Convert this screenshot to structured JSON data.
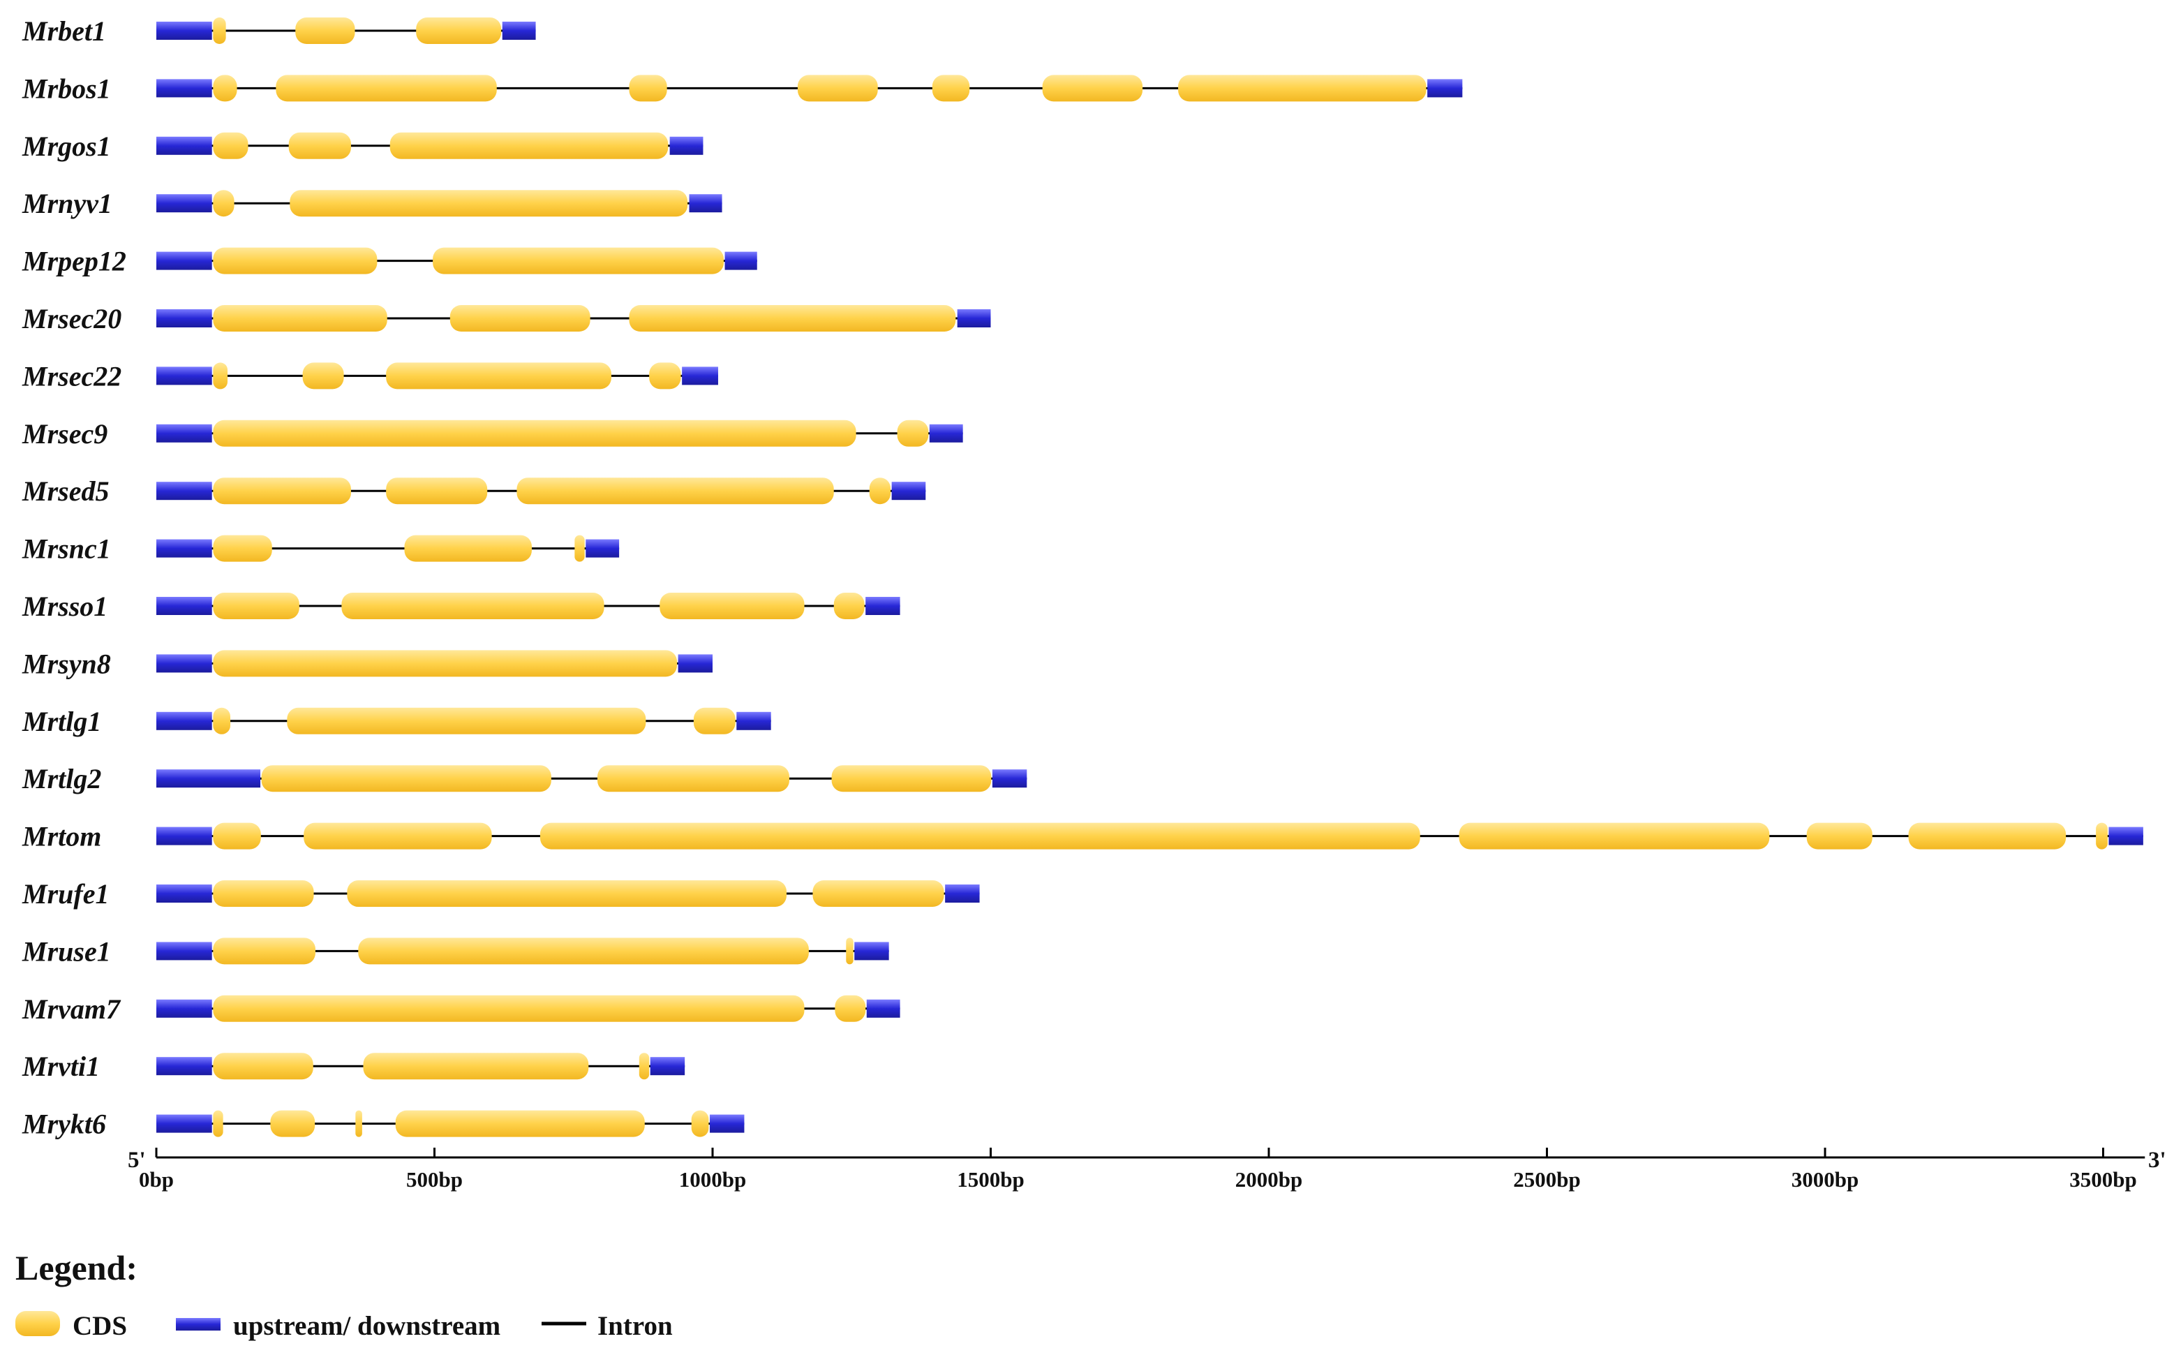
{
  "chart_data": {
    "type": "gene-structure",
    "scale_unit": "bp",
    "xlim": [
      0,
      3575
    ],
    "end_labels": {
      "left": "5'",
      "right": "3'"
    },
    "axis_ticks": [
      {
        "value": 0,
        "label": "0bp"
      },
      {
        "value": 500,
        "label": "500bp"
      },
      {
        "value": 1000,
        "label": "1000bp"
      },
      {
        "value": 1500,
        "label": "1500bp"
      },
      {
        "value": 2000,
        "label": "2000bp"
      },
      {
        "value": 2500,
        "label": "2500bp"
      },
      {
        "value": 3000,
        "label": "3000bp"
      },
      {
        "value": 3500,
        "label": "3500bp"
      }
    ],
    "legend": {
      "title": "Legend:",
      "items": [
        {
          "key": "cds",
          "label": "CDS"
        },
        {
          "key": "utr",
          "label": "upstream/ downstream"
        },
        {
          "key": "intron",
          "label": "Intron"
        }
      ]
    },
    "colors": {
      "cds": "#ffd24a",
      "cds_light": "#ffe89a",
      "cds_dark": "#f2b722",
      "utr": "#2727d6",
      "utr_light": "#7a7aff",
      "intron": "#000000"
    },
    "genes": [
      {
        "name": "Mrbet1",
        "length": 682,
        "utr": [
          [
            0,
            100
          ],
          [
            622,
            682
          ]
        ],
        "cds": [
          [
            102,
            125
          ],
          [
            250,
            357
          ],
          [
            467,
            620
          ]
        ]
      },
      {
        "name": "Mrbos1",
        "length": 2348,
        "utr": [
          [
            0,
            100
          ],
          [
            2285,
            2348
          ]
        ],
        "cds": [
          [
            102,
            145
          ],
          [
            215,
            612
          ],
          [
            850,
            918
          ],
          [
            1153,
            1297
          ],
          [
            1395,
            1462
          ],
          [
            1593,
            1773
          ],
          [
            1837,
            2283
          ]
        ]
      },
      {
        "name": "Mrgos1",
        "length": 983,
        "utr": [
          [
            0,
            100
          ],
          [
            923,
            983
          ]
        ],
        "cds": [
          [
            102,
            165
          ],
          [
            238,
            350
          ],
          [
            420,
            920
          ]
        ]
      },
      {
        "name": "Mrnyv1",
        "length": 1017,
        "utr": [
          [
            0,
            100
          ],
          [
            958,
            1017
          ]
        ],
        "cds": [
          [
            102,
            140
          ],
          [
            240,
            955
          ]
        ]
      },
      {
        "name": "Mrpep12",
        "length": 1080,
        "utr": [
          [
            0,
            100
          ],
          [
            1022,
            1080
          ]
        ],
        "cds": [
          [
            102,
            397
          ],
          [
            497,
            1020
          ]
        ]
      },
      {
        "name": "Mrsec20",
        "length": 1500,
        "utr": [
          [
            0,
            100
          ],
          [
            1440,
            1500
          ]
        ],
        "cds": [
          [
            102,
            415
          ],
          [
            528,
            780
          ],
          [
            850,
            1437
          ]
        ]
      },
      {
        "name": "Mrsec22",
        "length": 1010,
        "utr": [
          [
            0,
            100
          ],
          [
            945,
            1010
          ]
        ],
        "cds": [
          [
            102,
            128
          ],
          [
            263,
            337
          ],
          [
            413,
            818
          ],
          [
            886,
            943
          ]
        ]
      },
      {
        "name": "Mrsec9",
        "length": 1450,
        "utr": [
          [
            0,
            100
          ],
          [
            1390,
            1450
          ]
        ],
        "cds": [
          [
            102,
            1258
          ],
          [
            1332,
            1388
          ]
        ]
      },
      {
        "name": "Mrsed5",
        "length": 1383,
        "utr": [
          [
            0,
            100
          ],
          [
            1322,
            1383
          ]
        ],
        "cds": [
          [
            102,
            350
          ],
          [
            413,
            595
          ],
          [
            648,
            1218
          ],
          [
            1282,
            1320
          ]
        ]
      },
      {
        "name": "Mrsnc1",
        "length": 832,
        "utr": [
          [
            0,
            100
          ],
          [
            772,
            832
          ]
        ],
        "cds": [
          [
            102,
            208
          ],
          [
            446,
            675
          ],
          [
            752,
            770
          ]
        ]
      },
      {
        "name": "Mrsso1",
        "length": 1337,
        "utr": [
          [
            0,
            100
          ],
          [
            1275,
            1337
          ]
        ],
        "cds": [
          [
            102,
            257
          ],
          [
            333,
            805
          ],
          [
            905,
            1165
          ],
          [
            1218,
            1273
          ]
        ]
      },
      {
        "name": "Mrsyn8",
        "length": 1000,
        "utr": [
          [
            0,
            100
          ],
          [
            938,
            1000
          ]
        ],
        "cds": [
          [
            102,
            936
          ]
        ]
      },
      {
        "name": "Mrtlg1",
        "length": 1105,
        "utr": [
          [
            0,
            100
          ],
          [
            1043,
            1105
          ]
        ],
        "cds": [
          [
            102,
            133
          ],
          [
            235,
            880
          ],
          [
            966,
            1041
          ]
        ]
      },
      {
        "name": "Mrtlg2",
        "length": 1565,
        "utr": [
          [
            0,
            187
          ],
          [
            1503,
            1565
          ]
        ],
        "cds": [
          [
            189,
            710
          ],
          [
            793,
            1138
          ],
          [
            1214,
            1501
          ]
        ]
      },
      {
        "name": "Mrtom",
        "length": 3572,
        "utr": [
          [
            0,
            100
          ],
          [
            3510,
            3572
          ]
        ],
        "cds": [
          [
            102,
            188
          ],
          [
            265,
            603
          ],
          [
            690,
            2272
          ],
          [
            2342,
            2900
          ],
          [
            2967,
            3085
          ],
          [
            3150,
            3433
          ],
          [
            3487,
            3508
          ]
        ]
      },
      {
        "name": "Mrufe1",
        "length": 1480,
        "utr": [
          [
            0,
            100
          ],
          [
            1418,
            1480
          ]
        ],
        "cds": [
          [
            102,
            283
          ],
          [
            343,
            1133
          ],
          [
            1180,
            1416
          ]
        ]
      },
      {
        "name": "Mruse1",
        "length": 1317,
        "utr": [
          [
            0,
            100
          ],
          [
            1255,
            1317
          ]
        ],
        "cds": [
          [
            102,
            286
          ],
          [
            363,
            1173
          ],
          [
            1240,
            1253
          ]
        ]
      },
      {
        "name": "Mrvam7",
        "length": 1337,
        "utr": [
          [
            0,
            100
          ],
          [
            1277,
            1337
          ]
        ],
        "cds": [
          [
            102,
            1165
          ],
          [
            1220,
            1275
          ]
        ]
      },
      {
        "name": "Mrvti1",
        "length": 950,
        "utr": [
          [
            0,
            100
          ],
          [
            888,
            950
          ]
        ],
        "cds": [
          [
            102,
            282
          ],
          [
            372,
            777
          ],
          [
            868,
            886
          ]
        ]
      },
      {
        "name": "Mrykt6",
        "length": 1057,
        "utr": [
          [
            0,
            100
          ],
          [
            995,
            1057
          ]
        ],
        "cds": [
          [
            102,
            120
          ],
          [
            205,
            285
          ],
          [
            358,
            370
          ],
          [
            430,
            878
          ],
          [
            962,
            993
          ]
        ]
      }
    ]
  }
}
